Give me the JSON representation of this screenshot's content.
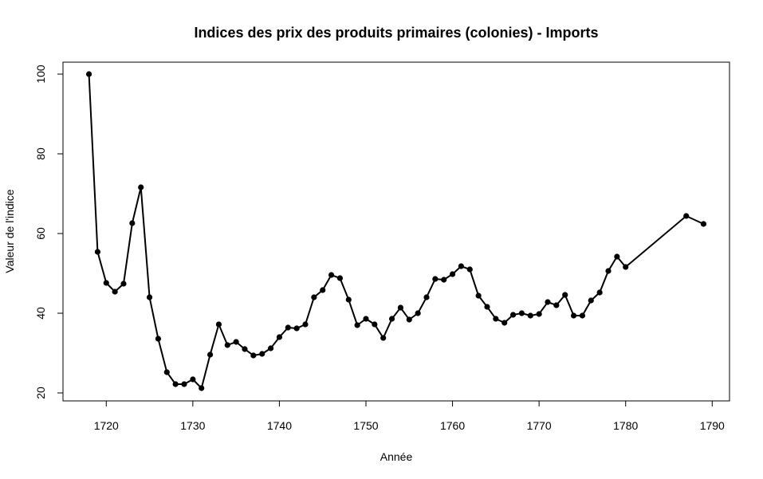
{
  "chart_data": {
    "type": "line",
    "title": "Indices des prix des produits primaires (colonies) - Imports",
    "xlabel": "Année",
    "ylabel": "Valeur de l'indice",
    "xlim": [
      1715,
      1792
    ],
    "ylim": [
      18,
      103
    ],
    "xticks": [
      1720,
      1730,
      1740,
      1750,
      1760,
      1770,
      1780,
      1790
    ],
    "yticks": [
      20,
      40,
      60,
      80,
      100
    ],
    "grid": false,
    "series": [
      {
        "color": "#000000",
        "marker": "filled-circle",
        "x": [
          1718,
          1719,
          1720,
          1721,
          1722,
          1723,
          1724,
          1725,
          1726,
          1727,
          1728,
          1729,
          1730,
          1731,
          1732,
          1733,
          1734,
          1735,
          1736,
          1737,
          1738,
          1739,
          1740,
          1741,
          1742,
          1743,
          1744,
          1745,
          1746,
          1747,
          1748,
          1749,
          1750,
          1751,
          1752,
          1753,
          1754,
          1755,
          1756,
          1757,
          1758,
          1759,
          1760,
          1761,
          1762,
          1763,
          1764,
          1765,
          1766,
          1767,
          1768,
          1769,
          1770,
          1771,
          1772,
          1773,
          1774,
          1775,
          1776,
          1777,
          1778,
          1779,
          1780,
          1787,
          1789
        ],
        "y": [
          100,
          55.4,
          47.6,
          45.4,
          47.4,
          62.6,
          71.6,
          44.0,
          33.6,
          25.2,
          22.2,
          22.2,
          23.4,
          21.2,
          29.6,
          37.2,
          32.0,
          32.8,
          31.0,
          29.4,
          29.8,
          31.2,
          34.0,
          36.4,
          36.2,
          37.2,
          44.0,
          45.8,
          49.6,
          48.8,
          43.4,
          37.0,
          38.6,
          37.2,
          33.8,
          38.6,
          41.4,
          38.4,
          40.0,
          44.0,
          48.6,
          48.4,
          49.8,
          51.8,
          51.0,
          44.4,
          41.6,
          38.6,
          37.6,
          39.6,
          40.0,
          39.4,
          39.8,
          42.8,
          42.0,
          44.6,
          39.4,
          39.4,
          43.2,
          45.2,
          50.6,
          54.2,
          51.6,
          64.4,
          62.4
        ]
      }
    ]
  }
}
